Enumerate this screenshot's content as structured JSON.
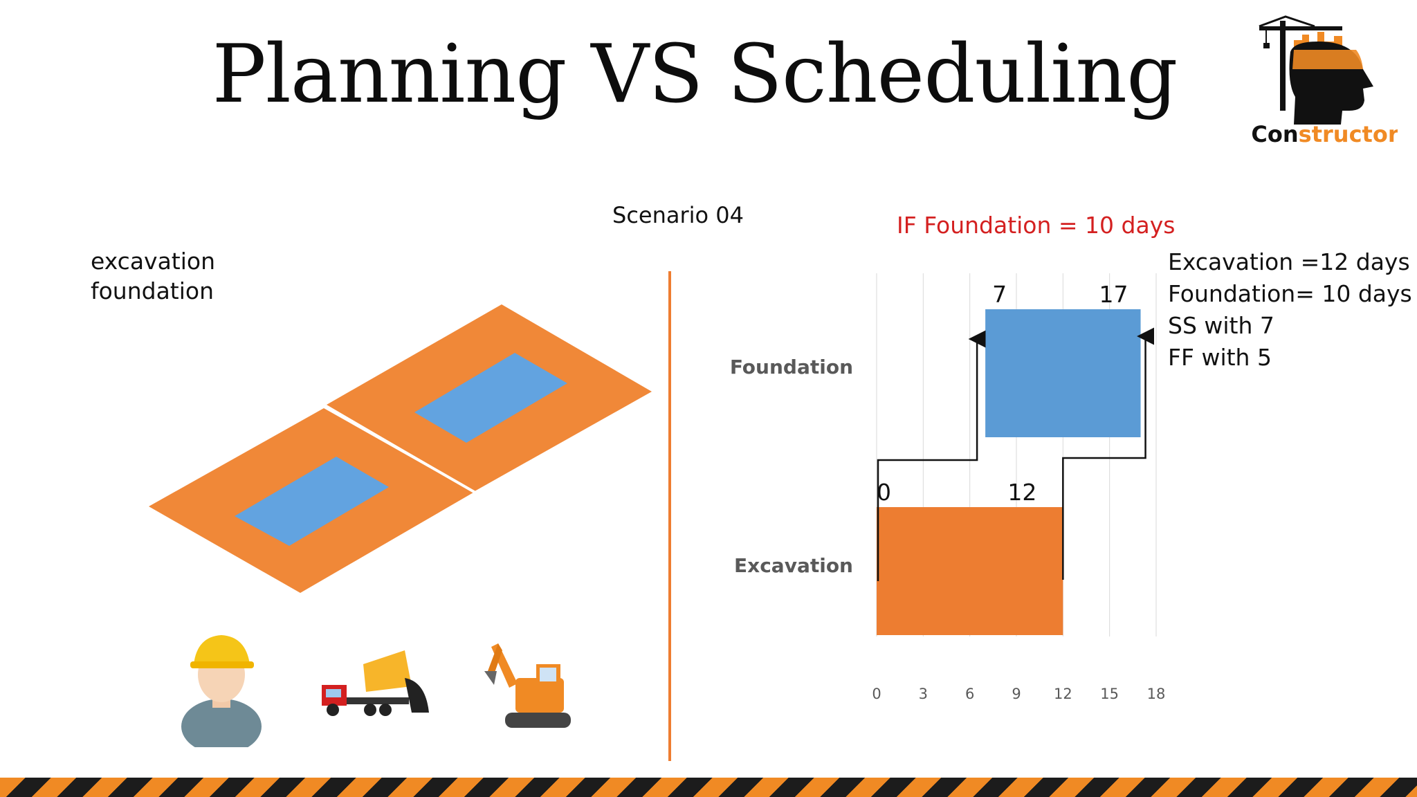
{
  "slide": {
    "title": "Planning VS Scheduling",
    "scenario": "Scenario 04",
    "condition": "IF Foundation = 10 days",
    "left_labels": [
      "excavation",
      "foundation"
    ],
    "notes": [
      "Excavation =12 days",
      "Foundation= 10 days",
      "SS with 7",
      "FF with 5"
    ],
    "logo_text": "Constructor",
    "icons": [
      "worker-icon",
      "dump-truck-icon",
      "excavator-icon"
    ],
    "colors": {
      "excavation": "#ed7d31",
      "foundation": "#5b9bd5",
      "accent": "#d42020",
      "divider": "#ee7d31"
    }
  },
  "chart_data": {
    "type": "bar",
    "orientation": "horizontal-gantt",
    "categories": [
      "Foundation",
      "Excavation"
    ],
    "bars": [
      {
        "category": "Foundation",
        "start": 7,
        "end": 17,
        "start_label": "7",
        "end_label": "17"
      },
      {
        "category": "Excavation",
        "start": 0,
        "end": 12,
        "start_label": "0",
        "end_label": "12"
      }
    ],
    "x_ticks": [
      0,
      3,
      6,
      9,
      12,
      15,
      18
    ],
    "xlim": [
      0,
      18
    ],
    "grid": true,
    "links": [
      {
        "type": "SS",
        "lag": 7,
        "from": "Excavation",
        "to": "Foundation"
      },
      {
        "type": "FF",
        "lag": 5,
        "from": "Excavation",
        "to": "Foundation"
      }
    ]
  }
}
